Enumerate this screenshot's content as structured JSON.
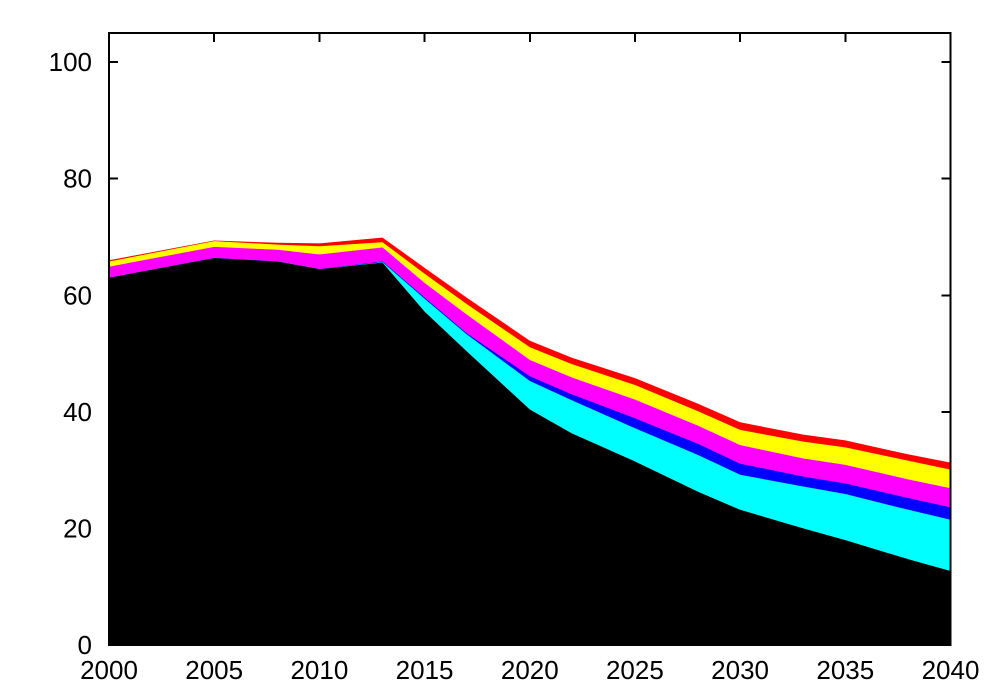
{
  "figure": {
    "background": "#ffffff",
    "axis_color": "#000000"
  },
  "chart_data": {
    "type": "area",
    "stacked": true,
    "title": "",
    "xlabel": "",
    "ylabel": "",
    "grid": false,
    "legend": "none",
    "xlim": [
      2000,
      2040
    ],
    "ylim": [
      0,
      105
    ],
    "xticks": [
      2000,
      2005,
      2010,
      2015,
      2020,
      2025,
      2030,
      2035,
      2040
    ],
    "yticks": [
      0,
      20,
      40,
      60,
      80,
      100
    ],
    "x": [
      2000,
      2005,
      2008,
      2010,
      2013,
      2015,
      2017,
      2020,
      2022,
      2025,
      2028,
      2030,
      2033,
      2035,
      2038,
      2040
    ],
    "series": [
      {
        "name": "black",
        "color": "#000000",
        "values": [
          63.0,
          66.4,
          65.8,
          64.5,
          65.6,
          57.2,
          50.4,
          40.4,
          36.3,
          31.5,
          26.3,
          23.2,
          20.0,
          18.0,
          14.7,
          12.7
        ]
      },
      {
        "name": "cyan",
        "color": "#00ffff",
        "values": [
          0.0,
          0.0,
          0.0,
          0.0,
          0.1,
          2.2,
          2.9,
          4.9,
          5.7,
          5.7,
          6.3,
          6.0,
          7.2,
          7.9,
          8.5,
          8.8
        ]
      },
      {
        "name": "blue",
        "color": "#0000ff",
        "values": [
          0.0,
          0.0,
          0.0,
          0.0,
          0.1,
          0.2,
          0.2,
          0.8,
          1.0,
          1.7,
          1.9,
          1.9,
          1.7,
          1.8,
          2.0,
          2.1
        ]
      },
      {
        "name": "magenta",
        "color": "#ff00ff",
        "values": [
          1.9,
          1.9,
          2.0,
          2.5,
          2.4,
          2.5,
          3.2,
          2.8,
          2.9,
          3.2,
          3.1,
          3.2,
          3.1,
          3.2,
          3.2,
          3.3
        ]
      },
      {
        "name": "yellow",
        "color": "#ffff00",
        "values": [
          0.9,
          1.0,
          0.9,
          1.4,
          0.9,
          1.6,
          1.8,
          2.2,
          2.3,
          2.5,
          2.5,
          2.6,
          2.9,
          3.0,
          3.2,
          3.2
        ]
      },
      {
        "name": "red",
        "color": "#ff0000",
        "values": [
          0.2,
          0.1,
          0.3,
          0.5,
          0.8,
          1.0,
          1.1,
          1.1,
          1.1,
          1.2,
          1.3,
          1.3,
          1.2,
          1.2,
          1.1,
          1.2
        ]
      }
    ]
  }
}
